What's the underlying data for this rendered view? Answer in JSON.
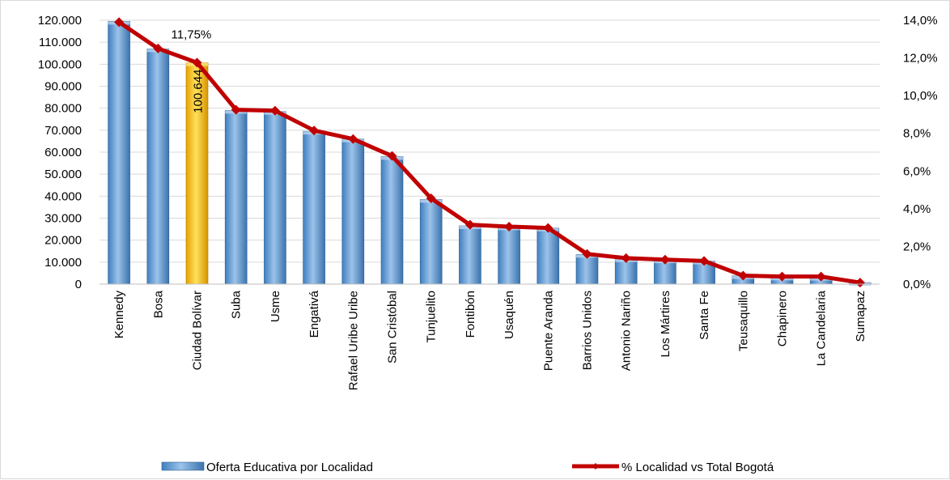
{
  "chart_data": {
    "type": "bar",
    "categories": [
      "Kennedy",
      "Bosa",
      "Ciudad Bolívar",
      "Suba",
      "Usme",
      "Engativá",
      "Rafael Uribe Uribe",
      "San Cristóbal",
      "Tunjuelito",
      "Fontibón",
      "Usaquén",
      "Puente Aranda",
      "Barrios Unidos",
      "Antonio Nariño",
      "Los Mártires",
      "Santa Fe",
      "Teusaquillo",
      "Chapinero",
      "La Candelaria",
      "Sumapaz"
    ],
    "series": [
      {
        "name": "Oferta Educativa por Localidad",
        "type": "bar",
        "axis": "left",
        "values": [
          119500,
          107000,
          100644,
          79000,
          78500,
          69500,
          66000,
          58000,
          38500,
          26500,
          26000,
          25500,
          13500,
          11500,
          11000,
          10500,
          3800,
          3200,
          3100,
          700
        ],
        "color": "#5b9bd5",
        "highlight_index": 2,
        "highlight_color": "#ffc000"
      },
      {
        "name": "% Localidad vs Total Bogotá",
        "type": "line",
        "axis": "right",
        "values": [
          13.9,
          12.5,
          11.75,
          9.25,
          9.2,
          8.15,
          7.7,
          6.8,
          4.55,
          3.15,
          3.05,
          2.98,
          1.6,
          1.38,
          1.3,
          1.23,
          0.45,
          0.4,
          0.4,
          0.08
        ],
        "color": "#c00000"
      }
    ],
    "y_left": {
      "min": 0,
      "max": 120000,
      "ticks": [
        "0",
        "10.000",
        "20.000",
        "30.000",
        "40.000",
        "50.000",
        "60.000",
        "70.000",
        "80.000",
        "90.000",
        "100.000",
        "110.000",
        "120.000"
      ]
    },
    "y_right": {
      "min": 0,
      "max": 14,
      "ticks": [
        "0,0%",
        "2,0%",
        "4,0%",
        "6,0%",
        "8,0%",
        "10,0%",
        "12,0%",
        "14,0%"
      ]
    },
    "annotations": {
      "bar_label": "100.644",
      "point_label": "11,75%"
    },
    "grid": true,
    "legend_position": "bottom"
  }
}
